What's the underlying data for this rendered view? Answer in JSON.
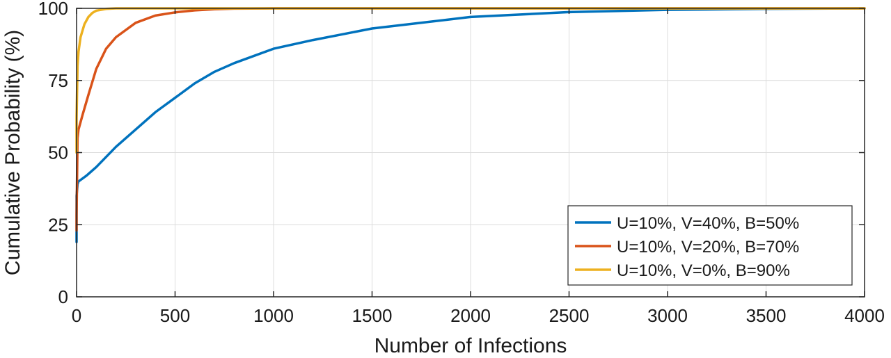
{
  "chart_data": {
    "type": "line",
    "xlabel": "Number of Infections",
    "ylabel": "Cumulative Probability (%)",
    "xlim": [
      0,
      4000
    ],
    "ylim": [
      0,
      100
    ],
    "xticks": [
      0,
      500,
      1000,
      1500,
      2000,
      2500,
      3000,
      3500,
      4000
    ],
    "yticks": [
      0,
      25,
      50,
      75,
      100
    ],
    "grid": true,
    "legend_position": "bottom-right",
    "series": [
      {
        "name": "U=10%, V=40%, B=50%",
        "color": "#0072BD",
        "x": [
          0,
          0,
          5,
          10,
          50,
          100,
          200,
          300,
          400,
          500,
          600,
          700,
          800,
          1000,
          1200,
          1500,
          2000,
          2500,
          3000,
          3500,
          4000
        ],
        "y": [
          19,
          35,
          39,
          40,
          42,
          45,
          52,
          58,
          64,
          69,
          74,
          78,
          81,
          86,
          89,
          93,
          97,
          98.7,
          99.5,
          99.8,
          100
        ]
      },
      {
        "name": "U=10%, V=20%, B=70%",
        "color": "#D95319",
        "x": [
          0,
          0,
          5,
          10,
          30,
          60,
          100,
          150,
          200,
          300,
          400,
          500,
          600,
          700,
          800,
          1000,
          4000
        ],
        "y": [
          23,
          28,
          55,
          58,
          63,
          70,
          79,
          86,
          90,
          95,
          97.5,
          98.6,
          99.3,
          99.7,
          99.9,
          100,
          100
        ]
      },
      {
        "name": "U=10%, V=0%, B=90%",
        "color": "#EDB120",
        "x": [
          0,
          0,
          5,
          10,
          20,
          40,
          60,
          80,
          100,
          150,
          200,
          300,
          4000
        ],
        "y": [
          50,
          62,
          80,
          85,
          90,
          94.5,
          97,
          98.4,
          99.2,
          99.8,
          100,
          100,
          100
        ]
      }
    ]
  }
}
